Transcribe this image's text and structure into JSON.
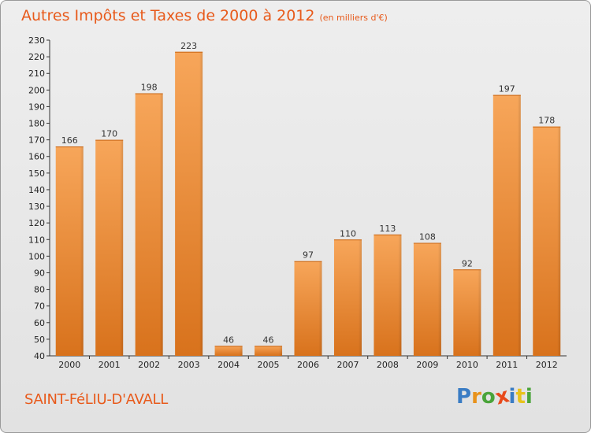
{
  "header": {
    "title": "Autres Impôts et Taxes de 2000 à 2012",
    "subtitle": "(en milliers d'€)"
  },
  "footer": {
    "place": "SAINT-FéLIU-D'AVALL",
    "brand": "Proxiti",
    "brand_letters": [
      {
        "ch": "P",
        "color": "#3a7cc4"
      },
      {
        "ch": "r",
        "color": "#e8921b"
      },
      {
        "ch": "o",
        "color": "#4aa43a"
      },
      {
        "ch": "x",
        "color": "#e84a1b"
      },
      {
        "ch": "i",
        "color": "#3a7cc4"
      },
      {
        "ch": "t",
        "color": "#e8c21b"
      },
      {
        "ch": "i",
        "color": "#4aa43a"
      }
    ]
  },
  "chart_data": {
    "type": "bar",
    "categories": [
      "2000",
      "2001",
      "2002",
      "2003",
      "2004",
      "2005",
      "2006",
      "2007",
      "2008",
      "2009",
      "2010",
      "2011",
      "2012"
    ],
    "values": [
      166,
      170,
      198,
      223,
      46,
      46,
      97,
      110,
      113,
      108,
      92,
      197,
      178
    ],
    "ylim": [
      40,
      230
    ],
    "yticks": [
      40,
      50,
      60,
      70,
      80,
      90,
      100,
      110,
      120,
      130,
      140,
      150,
      160,
      170,
      180,
      190,
      200,
      210,
      220,
      230
    ],
    "grid": false,
    "legend": "none",
    "bar_color": "#f0902e"
  }
}
